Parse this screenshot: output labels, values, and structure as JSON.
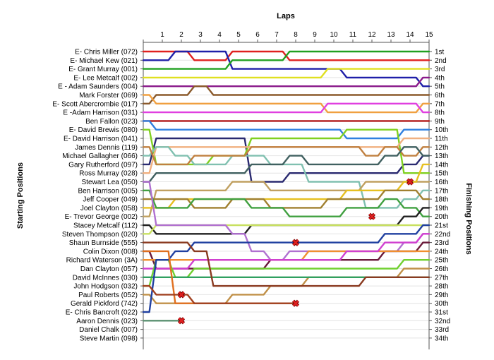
{
  "chart_data": {
    "type": "line",
    "title": "",
    "xlabel": "Laps",
    "ylabel_left": "Starting Positions",
    "ylabel_right": "Finishing Positions",
    "laps": [
      "1",
      "2",
      "3",
      "4",
      "5",
      "6",
      "7",
      "8",
      "9",
      "10",
      "11",
      "12",
      "13",
      "14",
      "15"
    ],
    "xlim": [
      0,
      15
    ],
    "ylim": [
      1,
      34
    ],
    "grid": true,
    "starting_labels": [
      "E- Chris Miller (072)",
      "E- Michael Kew (021)",
      "E- Grant Murray (001)",
      "E- Lee Metcalf (002)",
      "E - Adam Saunders (004)",
      "Mark Forster (069)",
      "E- Scott Abercrombie (017)",
      "E -Adam Harrison (031)",
      "Ben Fallon (023)",
      "E- David Brewis (080)",
      "E- David Harrison (041)",
      "James Dennis (119)",
      "Michael Gallagher (066)",
      "Gary Rutherford (097)",
      "Ross Murray (028)",
      "Stewart Lea (050)",
      "Ben Harrison (005)",
      "Jeff Cooper (049)",
      "Joel Clayton (058)",
      "E- Trevor George (002)",
      "Stacey Metcalf (112)",
      "Steven Thompson (020)",
      "Shaun Burnside (555)",
      "Colin Dixon (008)",
      "Richard Waterson (3A)",
      "Dan Clayton (057)",
      "David McInnes (030)",
      "John Hodgson (032)",
      "Paul Roberts (052)",
      "Gerald Pickford (742)",
      "E- Chris Bancroft (022)",
      "Aaron Dennis (023)",
      "Daniel Chalk (007)",
      "Steve Martin (098)"
    ],
    "finishing_labels": [
      "1st",
      "2nd",
      "3rd",
      "4th",
      "5th",
      "6th",
      "7th",
      "8th",
      "9th",
      "10th",
      "11th",
      "12th",
      "13th",
      "14th",
      "15th",
      "16th",
      "17th",
      "18th",
      "19th",
      "20th",
      "21st",
      "22nd",
      "23rd",
      "24th",
      "25th",
      "26th",
      "27th",
      "28th",
      "29th",
      "30th",
      "31st",
      "32nd",
      "33rd",
      "34th"
    ],
    "series": [
      {
        "color": "#e0201f",
        "positions": [
          1,
          1,
          1,
          2,
          2,
          1,
          1,
          1,
          2,
          2,
          2,
          2,
          2,
          2,
          2,
          2
        ]
      },
      {
        "color": "#1f1fa8",
        "positions": [
          2,
          2,
          1,
          1,
          1,
          3,
          3,
          3,
          3,
          3,
          3,
          4,
          4,
          4,
          4,
          5
        ]
      },
      {
        "color": "#20a020",
        "positions": [
          3,
          3,
          3,
          3,
          3,
          2,
          2,
          2,
          1,
          1,
          1,
          1,
          1,
          1,
          1,
          1
        ]
      },
      {
        "color": "#e0e020",
        "positions": [
          4,
          4,
          4,
          4,
          4,
          4,
          4,
          4,
          4,
          4,
          3,
          3,
          3,
          3,
          3,
          3
        ]
      },
      {
        "color": "#8a1a8a",
        "positions": [
          5,
          5,
          5,
          5,
          5,
          5,
          5,
          5,
          5,
          5,
          5,
          5,
          5,
          5,
          5,
          4
        ]
      },
      {
        "color": "#8b5a2b",
        "positions": [
          7,
          6,
          6,
          5,
          6,
          6,
          6,
          6,
          6,
          6,
          6,
          6,
          6,
          6,
          6,
          6
        ]
      },
      {
        "color": "#f0a040",
        "positions": [
          6,
          7,
          7,
          7,
          7,
          7,
          7,
          7,
          7,
          7,
          8,
          8,
          8,
          8,
          8,
          7
        ]
      },
      {
        "color": "#e040e0",
        "positions": [
          8,
          8,
          8,
          8,
          8,
          8,
          8,
          8,
          8,
          8,
          7,
          7,
          7,
          7,
          7,
          8
        ]
      },
      {
        "color": "#b01818",
        "positions": [
          9,
          9,
          9,
          9,
          9,
          9,
          9,
          9,
          9,
          9,
          9,
          9,
          9,
          9,
          9,
          9
        ]
      },
      {
        "color": "#3080e0",
        "positions": [
          9,
          10,
          10,
          10,
          10,
          10,
          10,
          10,
          10,
          10,
          10,
          11,
          11,
          11,
          10,
          10
        ]
      },
      {
        "color": "#2a2a70",
        "positions": [
          14,
          11,
          11,
          11,
          11,
          11,
          16,
          16,
          15,
          15,
          15,
          15,
          15,
          15,
          14,
          13
        ]
      },
      {
        "color": "#80d020",
        "positions": [
          10,
          14,
          14,
          14,
          13,
          13,
          11,
          11,
          11,
          11,
          11,
          10,
          10,
          10,
          15,
          15
        ]
      },
      {
        "color": "#f0b080",
        "positions": [
          15,
          12,
          12,
          12,
          12,
          12,
          12,
          12,
          12,
          12,
          12,
          12,
          12,
          12,
          11,
          11
        ]
      },
      {
        "color": "#80c0b0",
        "positions": [
          13,
          12,
          13,
          14,
          14,
          13,
          13,
          14,
          14,
          16,
          16,
          16,
          19,
          19,
          18,
          17
        ]
      },
      {
        "color": "#c08040",
        "positions": [
          12,
          14,
          14,
          13,
          13,
          13,
          12,
          12,
          12,
          12,
          12,
          12,
          13,
          12,
          13,
          12
        ]
      },
      {
        "color": "#406060",
        "positions": [
          16,
          15,
          15,
          15,
          15,
          15,
          14,
          14,
          13,
          14,
          14,
          14,
          14,
          13,
          12,
          13
        ]
      },
      {
        "color": "#c0a060",
        "positions": [
          20,
          17,
          17,
          17,
          17,
          16,
          16,
          17,
          17,
          17,
          17,
          17,
          16,
          16,
          16,
          16
        ]
      },
      {
        "color": "#e6c020",
        "positions": [
          19,
          19,
          18,
          18,
          18,
          18,
          18,
          18,
          18,
          18,
          18,
          17,
          17,
          17,
          16,
          14
        ]
      },
      {
        "color": "#a08030",
        "positions": [
          18,
          18,
          18,
          19,
          19,
          18,
          18,
          19,
          19,
          19,
          18,
          18,
          18,
          17,
          17,
          18
        ]
      },
      {
        "color": "#40a040",
        "positions": [
          17,
          19,
          19,
          18,
          18,
          18,
          19,
          19,
          20,
          20,
          20,
          19,
          19,
          18,
          19,
          20
        ]
      },
      {
        "color": "#202020",
        "positions": [
          21,
          22,
          22,
          22,
          22,
          22,
          21,
          21,
          21,
          21,
          21,
          21,
          21,
          21,
          20,
          19
        ]
      },
      {
        "color": "#c8e060",
        "positions": [
          22,
          21,
          21,
          21,
          21,
          21,
          21,
          21,
          21,
          21,
          21,
          21,
          21,
          21,
          21,
          21
        ]
      },
      {
        "color": "#b070d0",
        "positions": [
          16,
          21,
          21,
          21,
          21,
          22,
          24,
          25,
          24,
          24,
          24,
          24,
          24,
          24,
          23,
          22
        ]
      },
      {
        "color": "#6a1a3a",
        "positions": [
          24,
          26,
          26,
          26,
          26,
          26,
          26,
          25,
          25,
          25,
          25,
          25,
          25,
          24,
          24,
          23
        ]
      },
      {
        "color": "#f09030",
        "positions": [
          25,
          25,
          25,
          25,
          25,
          25,
          25,
          25,
          25,
          24,
          24,
          24,
          24,
          24,
          24,
          24
        ]
      },
      {
        "color": "#d040d0",
        "positions": [
          26,
          26,
          26,
          25,
          25,
          25,
          25,
          25,
          25,
          25,
          25,
          24,
          24,
          23,
          23,
          22
        ]
      },
      {
        "color": "#70d030",
        "positions": [
          28,
          25,
          27,
          26,
          26,
          26,
          26,
          26,
          26,
          26,
          26,
          26,
          26,
          26,
          25,
          25
        ]
      },
      {
        "color": "#c09048",
        "positions": [
          29,
          30,
          30,
          30,
          30,
          29,
          29,
          28,
          28,
          27,
          27,
          27,
          27,
          27,
          26,
          26
        ]
      },
      {
        "color": "#30a060",
        "positions": [
          27,
          27,
          27,
          27,
          27,
          27,
          27,
          27,
          27,
          27,
          27,
          27,
          27,
          27,
          27,
          27
        ]
      },
      {
        "color": "#2040a0",
        "positions": [
          31,
          25,
          24,
          23,
          23,
          23,
          23,
          23,
          23,
          23,
          23,
          23,
          23,
          22,
          22,
          21
        ]
      },
      {
        "color": "#e07020",
        "positions": [
          24,
          24,
          30,
          30,
          30,
          30,
          30,
          30,
          30
        ]
      },
      {
        "color": "#a04020",
        "positions": [
          28,
          29,
          29,
          30,
          30,
          30,
          30,
          30,
          30
        ]
      },
      {
        "color": "#8a3a20",
        "positions": [
          23,
          23,
          23,
          24,
          28,
          28,
          28,
          28,
          28,
          28,
          28,
          28,
          27,
          27,
          27,
          27
        ]
      },
      {
        "color": "#5a9070",
        "positions": [
          32,
          32,
          32
        ]
      }
    ],
    "retirements": [
      {
        "lap": 2,
        "position": 29
      },
      {
        "lap": 2,
        "position": 32
      },
      {
        "lap": 8,
        "position": 23
      },
      {
        "lap": 8,
        "position": 30
      },
      {
        "lap": 12,
        "position": 20
      },
      {
        "lap": 14,
        "position": 16
      }
    ]
  }
}
